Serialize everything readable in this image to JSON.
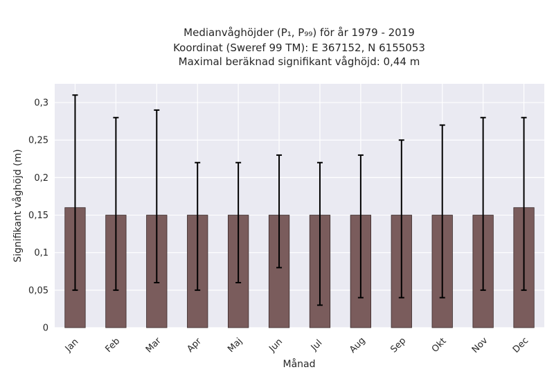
{
  "chart_data": {
    "type": "bar",
    "title_lines": [
      "Medianvåghöjder (P₁, P₉₉) för år 1979 - 2019",
      "Koordinat (Sweref 99 TM): E 367152, N 6155053",
      "Maximal beräknad signifikant våghöjd: 0,44 m"
    ],
    "xlabel": "Månad",
    "ylabel": "Signifikant våghöjd (m)",
    "categories": [
      "Jan",
      "Feb",
      "Mar",
      "Apr",
      "Maj",
      "Jun",
      "Jul",
      "Aug",
      "Sep",
      "Okt",
      "Nov",
      "Dec"
    ],
    "values": [
      0.16,
      0.15,
      0.15,
      0.15,
      0.15,
      0.15,
      0.15,
      0.15,
      0.15,
      0.15,
      0.15,
      0.16
    ],
    "p1": [
      0.05,
      0.05,
      0.06,
      0.05,
      0.06,
      0.08,
      0.03,
      0.04,
      0.04,
      0.04,
      0.05,
      0.05
    ],
    "p99": [
      0.31,
      0.28,
      0.29,
      0.22,
      0.22,
      0.23,
      0.22,
      0.23,
      0.25,
      0.27,
      0.28,
      0.28
    ],
    "ylim": [
      0,
      0.325
    ],
    "yticks": [
      0,
      0.05,
      0.1,
      0.15,
      0.2,
      0.25,
      0.3
    ],
    "ytick_labels": [
      "0",
      "0,05",
      "0,1",
      "0,15",
      "0,2",
      "0,25",
      "0,3"
    ],
    "grid": true,
    "colors": {
      "bar": "#7a5c5c",
      "plot_background": "#eaeaf2",
      "error_bar": "#000000"
    }
  }
}
